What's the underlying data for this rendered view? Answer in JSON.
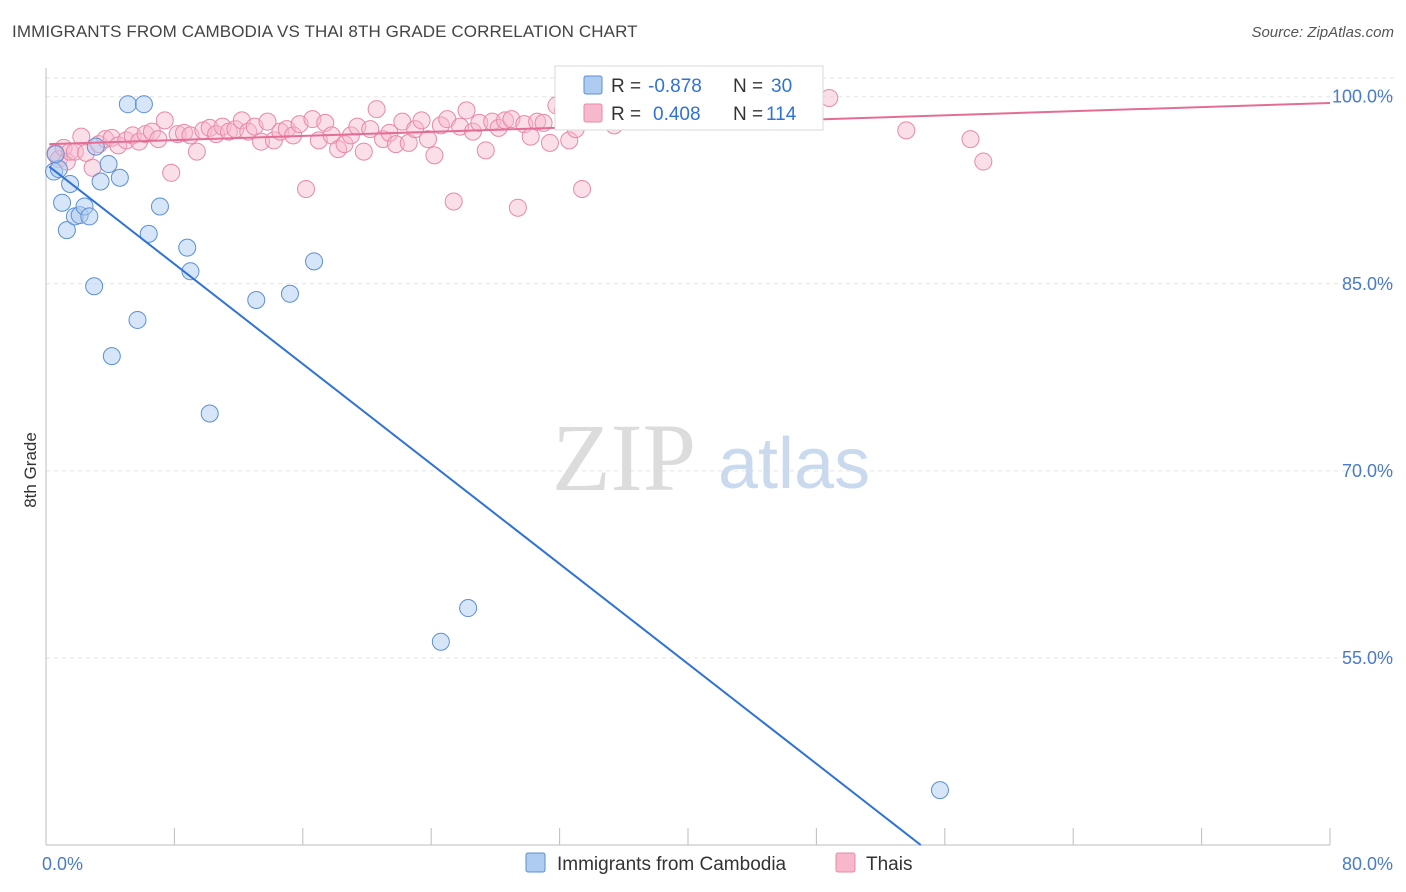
{
  "title": "IMMIGRANTS FROM CAMBODIA VS THAI 8TH GRADE CORRELATION CHART",
  "source": "Source: ZipAtlas.com",
  "watermark": {
    "zip": "ZIP",
    "atlas": "atlas"
  },
  "colors": {
    "cambodia_fill": "#aecbf0",
    "cambodia_stroke": "#5b8fd6",
    "cambodia_line": "#2f72d6",
    "thai_fill": "#f7b8cb",
    "thai_stroke": "#e889a8",
    "thai_line": "#e46d96",
    "tick_text": "#4a7bc8"
  },
  "legend": {
    "row1": {
      "r_label": "R =",
      "r_value": "-0.878",
      "n_label": "N =",
      "n_value": "30"
    },
    "row2": {
      "r_label": "R =",
      "r_value": "0.408",
      "n_label": "N =",
      "n_value": "114"
    }
  },
  "chart_data": {
    "type": "scatter",
    "title": "IMMIGRANTS FROM CAMBODIA VS THAI 8TH GRADE CORRELATION CHART",
    "xlabel": "",
    "ylabel": "8th Grade",
    "xlim": [
      0,
      80
    ],
    "ylim": [
      40,
      101.5
    ],
    "x_tick_labels": [
      "0.0%",
      "80.0%"
    ],
    "y_ticks": [
      55,
      70,
      85,
      100
    ],
    "y_tick_labels": [
      "55.0%",
      "70.0%",
      "85.0%",
      "100.0%"
    ],
    "grid": true,
    "legend_placement": "top-center",
    "series": [
      {
        "name": "Immigrants from Cambodia",
        "r": -0.878,
        "n": 30,
        "trend": [
          [
            0.2,
            94.4
          ],
          [
            54.5,
            40.0
          ]
        ],
        "points": [
          [
            0.5,
            94.0
          ],
          [
            0.8,
            94.2
          ],
          [
            0.6,
            95.4
          ],
          [
            1.0,
            91.5
          ],
          [
            1.3,
            89.3
          ],
          [
            1.5,
            93.0
          ],
          [
            1.8,
            90.4
          ],
          [
            2.1,
            90.5
          ],
          [
            2.4,
            91.2
          ],
          [
            2.7,
            90.4
          ],
          [
            3.1,
            96.0
          ],
          [
            3.4,
            93.2
          ],
          [
            3.9,
            94.6
          ],
          [
            4.6,
            93.5
          ],
          [
            5.1,
            99.4
          ],
          [
            6.1,
            99.4
          ],
          [
            6.4,
            89.0
          ],
          [
            7.1,
            91.2
          ],
          [
            8.8,
            87.9
          ],
          [
            9.0,
            86.0
          ],
          [
            3.0,
            84.8
          ],
          [
            5.7,
            82.1
          ],
          [
            4.1,
            79.2
          ],
          [
            10.2,
            74.6
          ],
          [
            13.1,
            83.7
          ],
          [
            15.2,
            84.2
          ],
          [
            16.7,
            86.8
          ],
          [
            24.6,
            56.3
          ],
          [
            26.3,
            59.0
          ],
          [
            55.7,
            44.4
          ]
        ]
      },
      {
        "name": "Thais",
        "r": 0.408,
        "n": 114,
        "trend": [
          [
            0.2,
            96.2
          ],
          [
            80.0,
            99.5
          ]
        ],
        "points": [
          [
            0.6,
            95.5
          ],
          [
            0.8,
            95.0
          ],
          [
            1.1,
            95.9
          ],
          [
            1.3,
            94.8
          ],
          [
            1.5,
            95.6
          ],
          [
            1.8,
            95.6
          ],
          [
            2.2,
            96.8
          ],
          [
            2.5,
            95.5
          ],
          [
            2.9,
            94.3
          ],
          [
            3.3,
            96.2
          ],
          [
            3.7,
            96.6
          ],
          [
            4.1,
            96.7
          ],
          [
            4.5,
            96.1
          ],
          [
            5.0,
            96.5
          ],
          [
            5.4,
            96.9
          ],
          [
            5.8,
            96.4
          ],
          [
            6.2,
            97.0
          ],
          [
            6.6,
            97.2
          ],
          [
            7.0,
            96.6
          ],
          [
            7.4,
            98.1
          ],
          [
            7.8,
            93.9
          ],
          [
            8.2,
            97.0
          ],
          [
            8.6,
            97.1
          ],
          [
            9.0,
            96.9
          ],
          [
            9.4,
            95.6
          ],
          [
            9.8,
            97.3
          ],
          [
            10.2,
            97.5
          ],
          [
            10.6,
            97.0
          ],
          [
            11.0,
            97.6
          ],
          [
            11.4,
            97.2
          ],
          [
            11.8,
            97.4
          ],
          [
            12.2,
            98.1
          ],
          [
            12.6,
            97.2
          ],
          [
            13.0,
            97.6
          ],
          [
            13.4,
            96.4
          ],
          [
            13.8,
            98.0
          ],
          [
            14.2,
            96.5
          ],
          [
            14.6,
            97.2
          ],
          [
            15.0,
            97.4
          ],
          [
            15.4,
            96.9
          ],
          [
            15.8,
            97.8
          ],
          [
            16.2,
            92.6
          ],
          [
            16.6,
            98.2
          ],
          [
            17.0,
            96.5
          ],
          [
            17.4,
            97.9
          ],
          [
            17.8,
            96.9
          ],
          [
            18.2,
            95.8
          ],
          [
            18.6,
            96.2
          ],
          [
            19.0,
            96.9
          ],
          [
            19.4,
            97.6
          ],
          [
            19.8,
            95.6
          ],
          [
            20.2,
            97.4
          ],
          [
            20.6,
            99.0
          ],
          [
            21.0,
            96.6
          ],
          [
            21.4,
            97.1
          ],
          [
            21.8,
            96.2
          ],
          [
            22.2,
            98.0
          ],
          [
            22.6,
            96.3
          ],
          [
            23.0,
            97.4
          ],
          [
            23.4,
            98.1
          ],
          [
            23.8,
            96.6
          ],
          [
            24.2,
            95.3
          ],
          [
            24.6,
            97.7
          ],
          [
            25.0,
            98.2
          ],
          [
            25.4,
            91.6
          ],
          [
            25.8,
            97.6
          ],
          [
            26.2,
            98.9
          ],
          [
            26.6,
            97.2
          ],
          [
            27.0,
            97.9
          ],
          [
            27.4,
            95.7
          ],
          [
            27.8,
            98.0
          ],
          [
            28.2,
            97.5
          ],
          [
            28.6,
            98.1
          ],
          [
            29.0,
            98.2
          ],
          [
            29.4,
            91.1
          ],
          [
            29.8,
            97.8
          ],
          [
            30.2,
            96.8
          ],
          [
            30.6,
            98.0
          ],
          [
            31.0,
            97.9
          ],
          [
            31.4,
            96.3
          ],
          [
            31.8,
            99.3
          ],
          [
            32.2,
            98.9
          ],
          [
            32.6,
            96.5
          ],
          [
            33.0,
            97.4
          ],
          [
            33.4,
            92.6
          ],
          [
            33.8,
            98.5
          ],
          [
            34.2,
            98.8
          ],
          [
            34.6,
            99.4
          ],
          [
            35.0,
            98.7
          ],
          [
            35.4,
            97.7
          ],
          [
            35.8,
            99.0
          ],
          [
            36.2,
            98.3
          ],
          [
            36.6,
            99.5
          ],
          [
            37.0,
            99.0
          ],
          [
            37.4,
            99.3
          ],
          [
            37.8,
            98.4
          ],
          [
            38.2,
            98.9
          ],
          [
            38.6,
            99.1
          ],
          [
            39.0,
            99.3
          ],
          [
            39.4,
            98.7
          ],
          [
            39.8,
            99.6
          ],
          [
            40.2,
            98.5
          ],
          [
            40.6,
            99.4
          ],
          [
            41.0,
            98.8
          ],
          [
            41.4,
            99.1
          ],
          [
            41.8,
            99.6
          ],
          [
            42.2,
            98.6
          ],
          [
            42.6,
            99.2
          ],
          [
            43.0,
            98.9
          ],
          [
            43.4,
            99.2
          ],
          [
            48.8,
            99.9
          ],
          [
            53.6,
            97.3
          ],
          [
            57.6,
            96.6
          ],
          [
            58.4,
            94.8
          ]
        ]
      }
    ]
  }
}
